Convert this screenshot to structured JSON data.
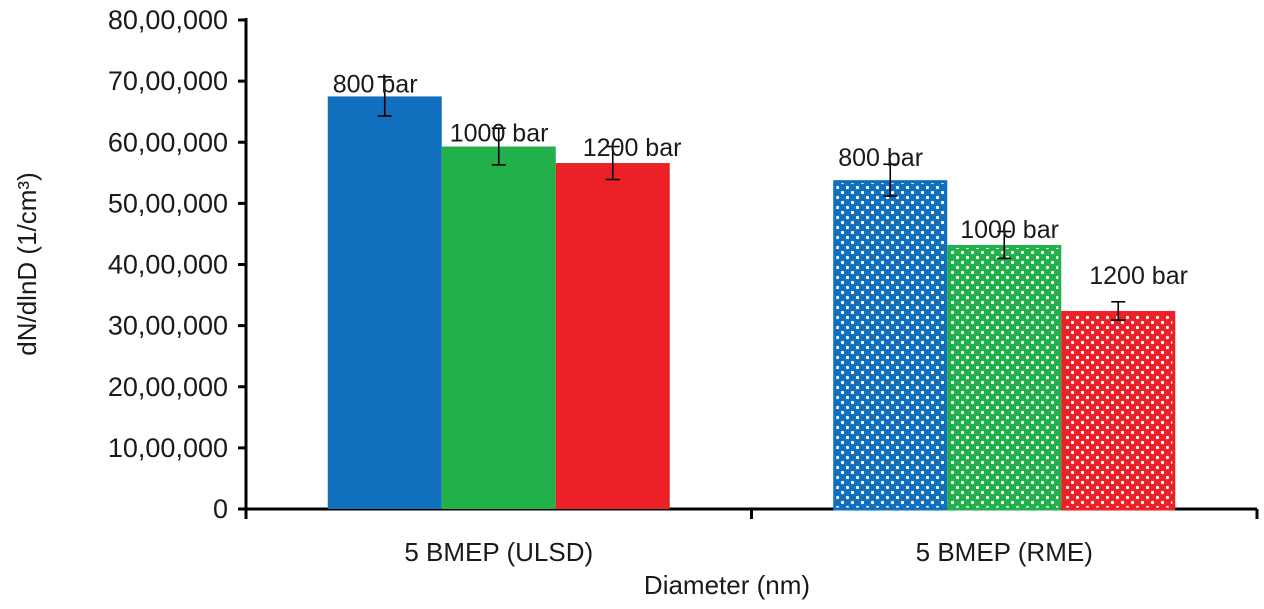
{
  "chart_data": {
    "type": "bar",
    "xlabel": "Diameter (nm)",
    "ylabel": "dN/dlnD (1/cm³)",
    "ylim": [
      0,
      8000000
    ],
    "yticks": [
      0,
      1000000,
      2000000,
      3000000,
      4000000,
      5000000,
      6000000,
      7000000,
      8000000
    ],
    "ytick_labels": [
      "0",
      "10,00,000",
      "20,00,000",
      "30,00,000",
      "40,00,000",
      "50,00,000",
      "60,00,000",
      "70,00,000",
      "80,00,000"
    ],
    "grid": false,
    "legend": "none",
    "groups": [
      {
        "category": "5 BMEP (ULSD)",
        "pattern": "solid",
        "bars": [
          {
            "label": "800 bar",
            "value": 6750000,
            "err": 320000,
            "color": "#1170bd"
          },
          {
            "label": "1000 bar",
            "value": 5930000,
            "err": 300000,
            "color": "#22b04b"
          },
          {
            "label": "1200 bar",
            "value": 5660000,
            "err": 270000,
            "color": "#ec2027"
          }
        ]
      },
      {
        "category": "5 BMEP (RME)",
        "pattern": "dotted",
        "bars": [
          {
            "label": "800 bar",
            "value": 5380000,
            "err": 260000,
            "color": "#1170bd"
          },
          {
            "label": "1000 bar",
            "value": 4320000,
            "err": 220000,
            "color": "#22b04b"
          },
          {
            "label": "1200 bar",
            "value": 3240000,
            "err": 150000,
            "color": "#ec2027"
          }
        ]
      }
    ]
  }
}
